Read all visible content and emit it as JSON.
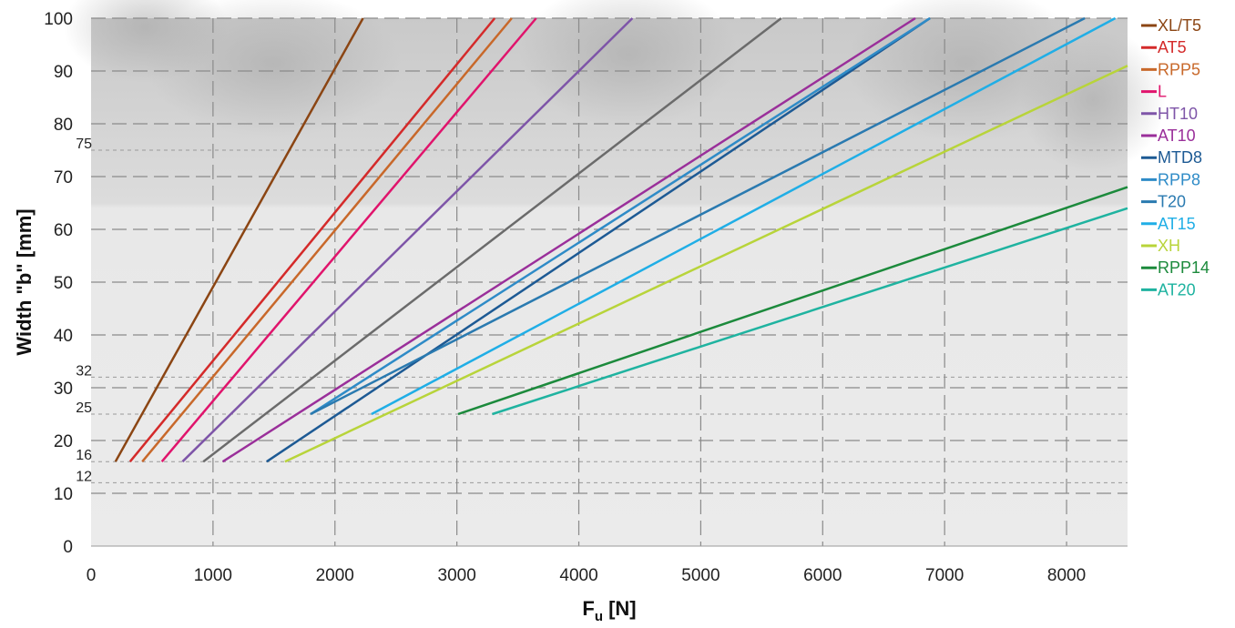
{
  "chart_data": {
    "type": "line",
    "xlabel_main": "F",
    "xlabel_sub": "u",
    "xlabel_unit": " [N]",
    "ylabel": "Width \"b\" [mm]",
    "xlim": [
      0,
      8500
    ],
    "ylim": [
      0,
      100
    ],
    "x_ticks": [
      0,
      1000,
      2000,
      3000,
      4000,
      5000,
      6000,
      7000,
      8000
    ],
    "y_ticks": [
      0,
      10,
      20,
      30,
      40,
      50,
      60,
      70,
      80,
      90,
      100
    ],
    "y_extra_ticks": [
      12,
      16,
      25,
      32,
      75
    ],
    "grid": true,
    "legend_position": "right",
    "series": [
      {
        "name": "XL/T5",
        "color": "#8B4513",
        "points": [
          [
            200,
            16
          ],
          [
            2230,
            100
          ]
        ]
      },
      {
        "name": "AT5",
        "color": "#D42A2A",
        "points": [
          [
            320,
            16
          ],
          [
            3310,
            100
          ]
        ]
      },
      {
        "name": "RPP5",
        "color": "#C8682A",
        "points": [
          [
            420,
            16
          ],
          [
            3450,
            100
          ]
        ]
      },
      {
        "name": "L",
        "color": "#E0146C",
        "points": [
          [
            580,
            16
          ],
          [
            3650,
            100
          ]
        ]
      },
      {
        "name": "HT10",
        "color": "#7E55A8",
        "points": [
          [
            750,
            16
          ],
          [
            4440,
            100
          ]
        ]
      },
      {
        "name": "",
        "color": "#6B6B6B",
        "points": [
          [
            920,
            16
          ],
          [
            5660,
            100
          ]
        ]
      },
      {
        "name": "AT10",
        "color": "#9A2F9A",
        "points": [
          [
            1080,
            16
          ],
          [
            6760,
            100
          ]
        ]
      },
      {
        "name": "MTD8",
        "color": "#1D5A94",
        "points": [
          [
            1440,
            16
          ],
          [
            6880,
            100
          ]
        ]
      },
      {
        "name": "RPP8",
        "color": "#2E8BC7",
        "points": [
          [
            1800,
            25
          ],
          [
            6880,
            100
          ]
        ]
      },
      {
        "name": "T20",
        "color": "#2A7AB0",
        "points": [
          [
            1800,
            25
          ],
          [
            8150,
            100
          ]
        ]
      },
      {
        "name": "AT15",
        "color": "#20AEE6",
        "points": [
          [
            2300,
            25
          ],
          [
            8400,
            100
          ]
        ]
      },
      {
        "name": "XH",
        "color": "#B8D43A",
        "points": [
          [
            1590,
            16
          ],
          [
            8500,
            91
          ]
        ]
      },
      {
        "name": "RPP14",
        "color": "#1C8A3C",
        "points": [
          [
            3010,
            25
          ],
          [
            8500,
            68
          ]
        ]
      },
      {
        "name": "AT20",
        "color": "#1FB3A0",
        "points": [
          [
            3290,
            25
          ],
          [
            8500,
            64
          ]
        ]
      }
    ]
  }
}
